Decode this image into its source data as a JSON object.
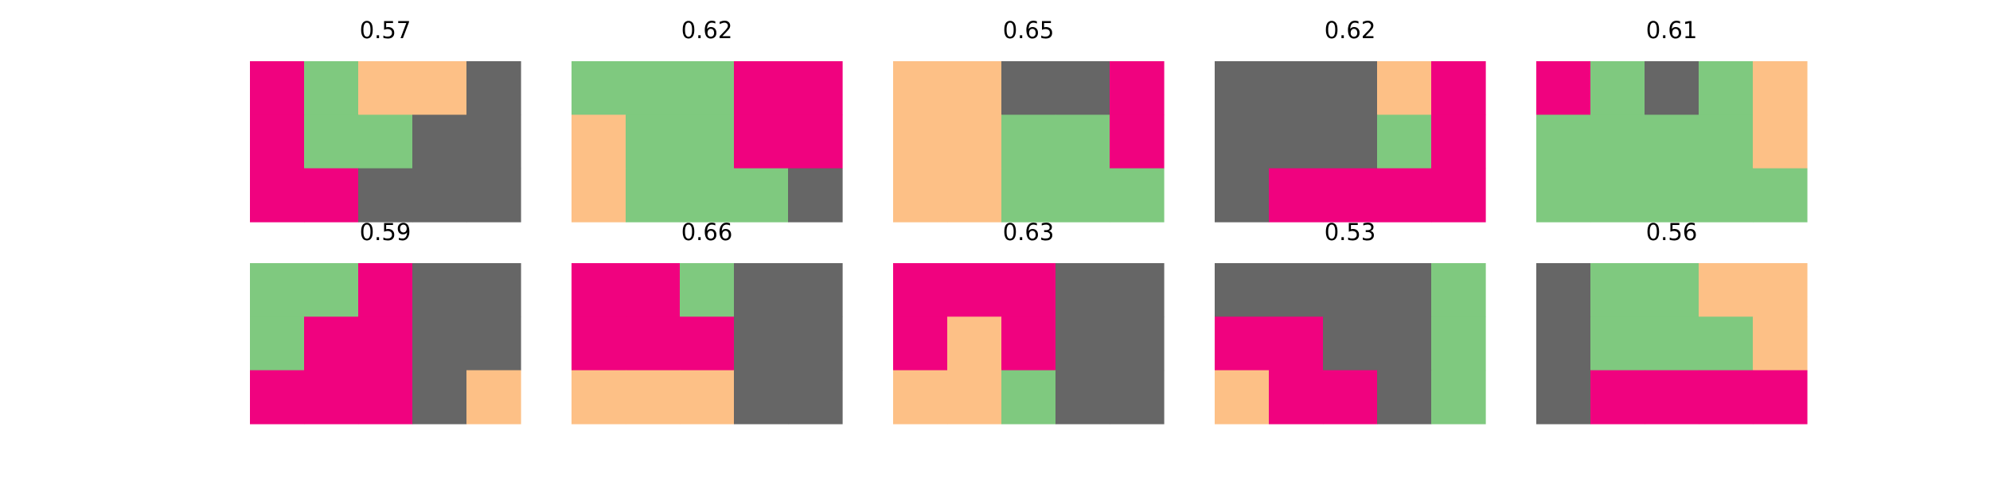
{
  "palette": {
    "1": "#f0027f",
    "2": "#7fc97f",
    "3": "#fdc086",
    "4": "#666666"
  },
  "chart_data": [
    {
      "type": "heatmap",
      "title": "0.57",
      "grid": [
        [
          1,
          2,
          3,
          3,
          4
        ],
        [
          1,
          2,
          2,
          4,
          4
        ],
        [
          1,
          1,
          4,
          4,
          4
        ]
      ]
    },
    {
      "type": "heatmap",
      "title": "0.62",
      "grid": [
        [
          2,
          2,
          2,
          1,
          1
        ],
        [
          3,
          2,
          2,
          1,
          1
        ],
        [
          3,
          2,
          2,
          2,
          4
        ]
      ]
    },
    {
      "type": "heatmap",
      "title": "0.65",
      "grid": [
        [
          3,
          3,
          4,
          4,
          1
        ],
        [
          3,
          3,
          2,
          2,
          1
        ],
        [
          3,
          3,
          2,
          2,
          2
        ]
      ]
    },
    {
      "type": "heatmap",
      "title": "0.62",
      "grid": [
        [
          4,
          4,
          4,
          3,
          1
        ],
        [
          4,
          4,
          4,
          2,
          1
        ],
        [
          4,
          1,
          1,
          1,
          1
        ]
      ]
    },
    {
      "type": "heatmap",
      "title": "0.61",
      "grid": [
        [
          1,
          2,
          4,
          2,
          3
        ],
        [
          2,
          2,
          2,
          2,
          3
        ],
        [
          2,
          2,
          2,
          2,
          2
        ]
      ]
    },
    {
      "type": "heatmap",
      "title": "0.59",
      "grid": [
        [
          2,
          2,
          1,
          4,
          4
        ],
        [
          2,
          1,
          1,
          4,
          4
        ],
        [
          1,
          1,
          1,
          4,
          3
        ]
      ]
    },
    {
      "type": "heatmap",
      "title": "0.66",
      "grid": [
        [
          1,
          1,
          2,
          4,
          4
        ],
        [
          1,
          1,
          1,
          4,
          4
        ],
        [
          3,
          3,
          3,
          4,
          4
        ]
      ]
    },
    {
      "type": "heatmap",
      "title": "0.63",
      "grid": [
        [
          1,
          1,
          1,
          4,
          4
        ],
        [
          1,
          3,
          1,
          4,
          4
        ],
        [
          3,
          3,
          2,
          4,
          4
        ]
      ]
    },
    {
      "type": "heatmap",
      "title": "0.53",
      "grid": [
        [
          4,
          4,
          4,
          4,
          2
        ],
        [
          1,
          1,
          4,
          4,
          2
        ],
        [
          3,
          1,
          1,
          4,
          2
        ]
      ]
    },
    {
      "type": "heatmap",
      "title": "0.56",
      "grid": [
        [
          4,
          2,
          2,
          3,
          3
        ],
        [
          4,
          2,
          2,
          2,
          3
        ],
        [
          4,
          1,
          1,
          1,
          1
        ]
      ]
    }
  ]
}
